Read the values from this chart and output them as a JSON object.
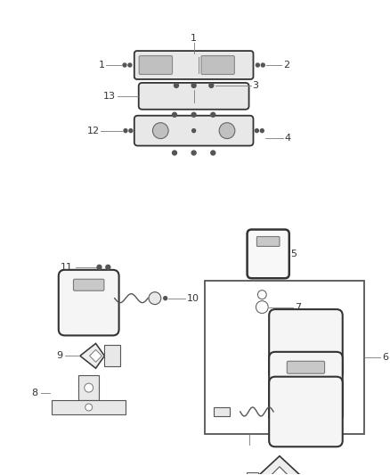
{
  "bg_color": "#ffffff",
  "line_color": "#555555",
  "dark_color": "#333333",
  "light_gray": "#e8e8e8",
  "mid_gray": "#cccccc"
}
